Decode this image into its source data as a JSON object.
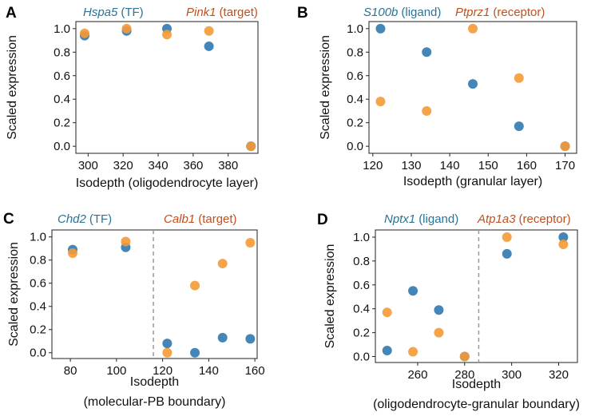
{
  "colors": {
    "blue": "#3b7fb5",
    "orange": "#f59a36",
    "blue_title": "#2a7396",
    "orange_title": "#c0501d",
    "divider": "#999999"
  },
  "chart_data": [
    {
      "type": "scatter",
      "panel": "A",
      "title_left": {
        "gene": "Hspa5",
        "role": "(TF)"
      },
      "title_right": {
        "gene": "Pink1",
        "role": "(target)"
      },
      "xlabel": [
        "Isodepth (oligodendrocyte layer)"
      ],
      "ylabel": "Scaled expression",
      "xlim": [
        293,
        397
      ],
      "ylim": [
        -0.06,
        1.06
      ],
      "xticks": [
        300,
        320,
        340,
        360,
        380
      ],
      "yticks": [
        0.0,
        0.2,
        0.4,
        0.6,
        0.8,
        1.0
      ],
      "ytick_labels": [
        "0.0",
        "0.2",
        "0.4",
        "0.6",
        "0.8",
        "1.0"
      ],
      "divider_x": null,
      "series": [
        {
          "color_key": "blue",
          "points": [
            [
              298,
              0.94
            ],
            [
              322,
              0.98
            ],
            [
              345,
              1.0
            ],
            [
              369,
              0.85
            ],
            [
              393,
              0.0
            ]
          ]
        },
        {
          "color_key": "orange",
          "points": [
            [
              298,
              0.96
            ],
            [
              322,
              1.0
            ],
            [
              345,
              0.95
            ],
            [
              369,
              0.98
            ],
            [
              393,
              0.0
            ]
          ]
        }
      ]
    },
    {
      "type": "scatter",
      "panel": "B",
      "title_left": {
        "gene": "S100b",
        "role": "(ligand)"
      },
      "title_right": {
        "gene": "Ptprz1",
        "role": "(receptor)"
      },
      "xlabel": [
        "Isodepth (granular layer)"
      ],
      "ylabel": "Scaled expression",
      "xlim": [
        119,
        173
      ],
      "ylim": [
        -0.06,
        1.06
      ],
      "xticks": [
        120,
        130,
        140,
        150,
        160,
        170
      ],
      "yticks": [
        0.0,
        0.2,
        0.4,
        0.6,
        0.8,
        1.0
      ],
      "ytick_labels": [
        "0.0",
        "0.2",
        "0.4",
        "0.6",
        "0.8",
        "1.0"
      ],
      "divider_x": null,
      "series": [
        {
          "color_key": "blue",
          "points": [
            [
              122,
              1.0
            ],
            [
              134,
              0.8
            ],
            [
              146,
              0.53
            ],
            [
              158,
              0.17
            ],
            [
              170,
              0.0
            ]
          ]
        },
        {
          "color_key": "orange",
          "points": [
            [
              122,
              0.38
            ],
            [
              134,
              0.3
            ],
            [
              146,
              1.0
            ],
            [
              158,
              0.58
            ],
            [
              170,
              0.0
            ]
          ]
        }
      ]
    },
    {
      "type": "scatter",
      "panel": "C",
      "title_left": {
        "gene": "Chd2",
        "role": "(TF)"
      },
      "title_right": {
        "gene": "Calb1",
        "role": "(target)"
      },
      "xlabel": [
        "Isodepth",
        "(molecular-PB boundary)"
      ],
      "ylabel": "Scaled expression",
      "xlim": [
        72,
        161
      ],
      "ylim": [
        -0.05,
        1.06
      ],
      "xticks": [
        80,
        100,
        120,
        140,
        160
      ],
      "yticks": [
        0.0,
        0.2,
        0.4,
        0.6,
        0.8,
        1.0
      ],
      "ytick_labels": [
        "0.0",
        "0.2",
        "0.4",
        "0.6",
        "0.8",
        "1.0"
      ],
      "divider_x": 116,
      "series": [
        {
          "color_key": "blue",
          "points": [
            [
              81,
              0.89
            ],
            [
              104,
              0.91
            ],
            [
              122,
              0.08
            ],
            [
              134,
              0.0
            ],
            [
              146,
              0.13
            ],
            [
              158,
              0.12
            ]
          ]
        },
        {
          "color_key": "orange",
          "points": [
            [
              81,
              0.86
            ],
            [
              104,
              0.96
            ],
            [
              122,
              0.0
            ],
            [
              134,
              0.58
            ],
            [
              146,
              0.77
            ],
            [
              158,
              0.95
            ]
          ]
        }
      ]
    },
    {
      "type": "scatter",
      "panel": "D",
      "title_left": {
        "gene": "Nptx1",
        "role": "(ligand)"
      },
      "title_right": {
        "gene": "Atp1a3",
        "role": "(receptor)"
      },
      "xlabel": [
        "Isodepth",
        "(oligodendrocyte-granular boundary)"
      ],
      "ylabel": "Scaled expression",
      "xlim": [
        242,
        328
      ],
      "ylim": [
        -0.05,
        1.06
      ],
      "xticks": [
        260,
        280,
        300,
        320
      ],
      "yticks": [
        0.0,
        0.2,
        0.4,
        0.6,
        0.8,
        1.0
      ],
      "ytick_labels": [
        "0.0",
        "0.2",
        "0.4",
        "0.6",
        "0.8",
        "1.0"
      ],
      "divider_x": 286,
      "series": [
        {
          "color_key": "blue",
          "points": [
            [
              247,
              0.05
            ],
            [
              258,
              0.55
            ],
            [
              269,
              0.39
            ],
            [
              280,
              0.0
            ],
            [
              298,
              0.86
            ],
            [
              322,
              1.0
            ]
          ]
        },
        {
          "color_key": "orange",
          "points": [
            [
              247,
              0.37
            ],
            [
              258,
              0.04
            ],
            [
              269,
              0.2
            ],
            [
              280,
              0.0
            ],
            [
              298,
              1.0
            ],
            [
              322,
              0.94
            ]
          ]
        }
      ]
    }
  ]
}
